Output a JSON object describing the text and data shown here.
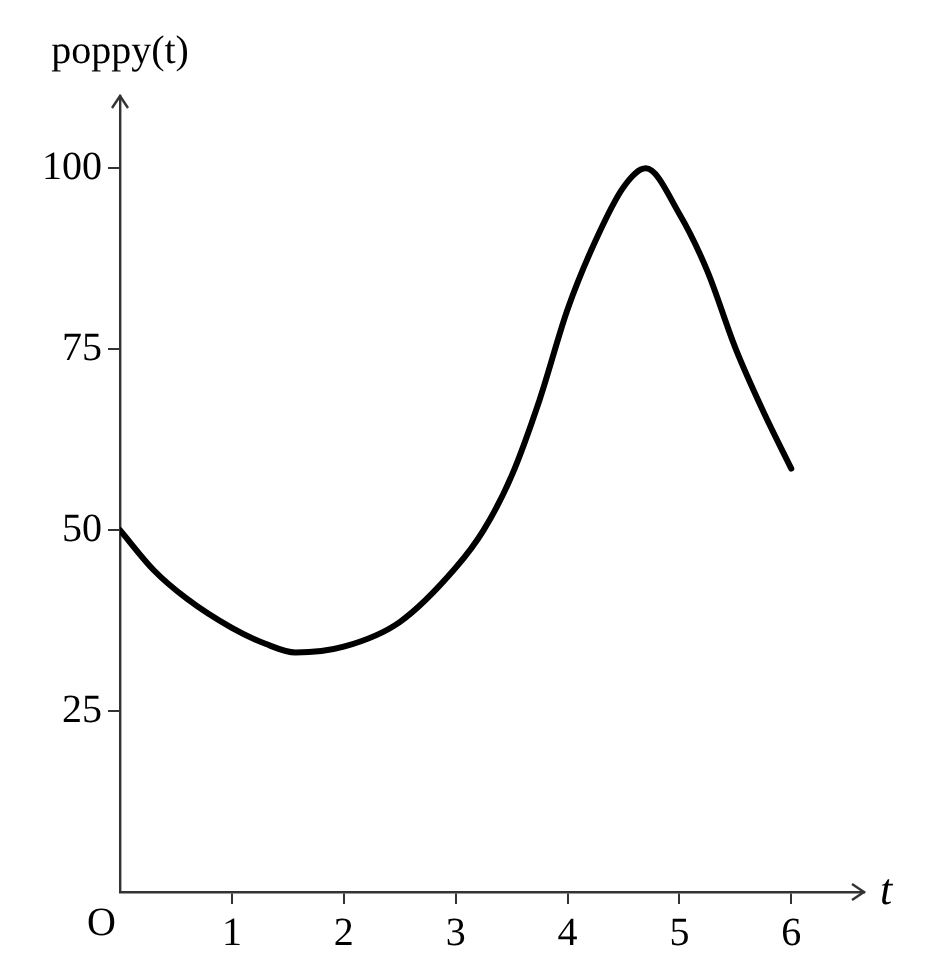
{
  "chart_data": {
    "type": "line",
    "xlabel": "t",
    "ylabel": "poppy(t)",
    "annotations": [
      "O"
    ],
    "x": [
      0,
      0.3,
      0.6,
      1,
      1.3,
      1.57,
      2,
      2.5,
      3,
      3.25,
      3.5,
      3.75,
      4,
      4.25,
      4.5,
      4.7,
      5,
      5.25,
      5.5,
      5.75,
      6
    ],
    "series": [
      {
        "color": "#000000",
        "values": [
          50,
          44.5,
          40.5,
          36.5,
          34.3,
          33.1,
          33.9,
          37.3,
          44.8,
          50,
          57.5,
          68,
          80.5,
          90,
          97.4,
          100,
          93.7,
          85.8,
          75.2,
          66.4,
          58.5
        ]
      }
    ],
    "xlim": [
      0,
      6.65
    ],
    "ylim": [
      0,
      110
    ],
    "xticks": [
      1,
      2,
      3,
      4,
      5,
      6
    ],
    "yticks": [
      25,
      50,
      75,
      100
    ],
    "grid": false,
    "legend": false,
    "marker": "none",
    "line_style": "solid"
  }
}
